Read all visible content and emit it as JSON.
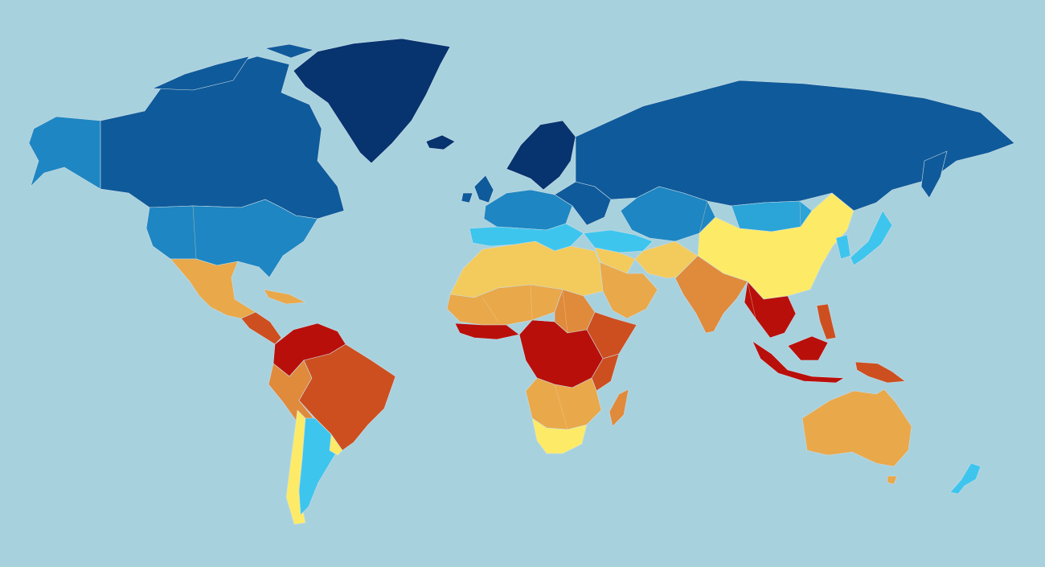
{
  "map": {
    "palette": {
      "ocean": "#a8d1de",
      "darkest_blue": "#07336f",
      "dark_blue": "#0f5a9a",
      "mid_blue": "#1e86c2",
      "light_blue": "#2ba4d8",
      "cyan": "#3ec5ee",
      "yellow": "#fdeb67",
      "light_orange": "#f3cb5c",
      "orange": "#e9a84a",
      "dark_orange": "#e08a3c",
      "red_orange": "#cd4f20",
      "red": "#b90f0b"
    },
    "regions": [
      {
        "id": "greenland",
        "color_key": "darkest_blue"
      },
      {
        "id": "canada",
        "color_key": "dark_blue"
      },
      {
        "id": "alaska",
        "color_key": "mid_blue"
      },
      {
        "id": "usa",
        "color_key": "mid_blue"
      },
      {
        "id": "mexico",
        "color_key": "orange"
      },
      {
        "id": "central-america",
        "color_key": "red_orange"
      },
      {
        "id": "caribbean",
        "color_key": "orange"
      },
      {
        "id": "north-south-america",
        "color_key": "red"
      },
      {
        "id": "brazil",
        "color_key": "red_orange"
      },
      {
        "id": "andes",
        "color_key": "dark_orange"
      },
      {
        "id": "chile",
        "color_key": "yellow"
      },
      {
        "id": "argentina",
        "color_key": "cyan"
      },
      {
        "id": "uruguay",
        "color_key": "yellow"
      },
      {
        "id": "iceland",
        "color_key": "darkest_blue"
      },
      {
        "id": "scandinavia",
        "color_key": "darkest_blue"
      },
      {
        "id": "british-isles",
        "color_key": "dark_blue"
      },
      {
        "id": "western-europe",
        "color_key": "mid_blue"
      },
      {
        "id": "southern-europe",
        "color_key": "cyan"
      },
      {
        "id": "eastern-europe",
        "color_key": "dark_blue"
      },
      {
        "id": "russia",
        "color_key": "dark_blue"
      },
      {
        "id": "central-asia",
        "color_key": "mid_blue"
      },
      {
        "id": "mongolia",
        "color_key": "light_blue"
      },
      {
        "id": "turkey-caucasus",
        "color_key": "cyan"
      },
      {
        "id": "china",
        "color_key": "yellow"
      },
      {
        "id": "korea",
        "color_key": "cyan"
      },
      {
        "id": "japan",
        "color_key": "cyan"
      },
      {
        "id": "middle-east",
        "color_key": "light_orange"
      },
      {
        "id": "arabia",
        "color_key": "orange"
      },
      {
        "id": "iran-afghanistan",
        "color_key": "light_orange"
      },
      {
        "id": "india",
        "color_key": "dark_orange"
      },
      {
        "id": "southeast-asia",
        "color_key": "red"
      },
      {
        "id": "philippines",
        "color_key": "red_orange"
      },
      {
        "id": "indonesia",
        "color_key": "red"
      },
      {
        "id": "new-guinea",
        "color_key": "red_orange"
      },
      {
        "id": "north-africa",
        "color_key": "light_orange"
      },
      {
        "id": "sahel",
        "color_key": "orange"
      },
      {
        "id": "west-africa",
        "color_key": "red"
      },
      {
        "id": "sudan",
        "color_key": "dark_orange"
      },
      {
        "id": "horn-of-africa",
        "color_key": "red_orange"
      },
      {
        "id": "central-africa",
        "color_key": "red"
      },
      {
        "id": "east-africa",
        "color_key": "red_orange"
      },
      {
        "id": "southern-africa-upper",
        "color_key": "orange"
      },
      {
        "id": "south-africa",
        "color_key": "yellow"
      },
      {
        "id": "madagascar",
        "color_key": "dark_orange"
      },
      {
        "id": "australia",
        "color_key": "orange"
      },
      {
        "id": "tasmania",
        "color_key": "orange"
      },
      {
        "id": "new-zealand",
        "color_key": "cyan"
      }
    ]
  }
}
